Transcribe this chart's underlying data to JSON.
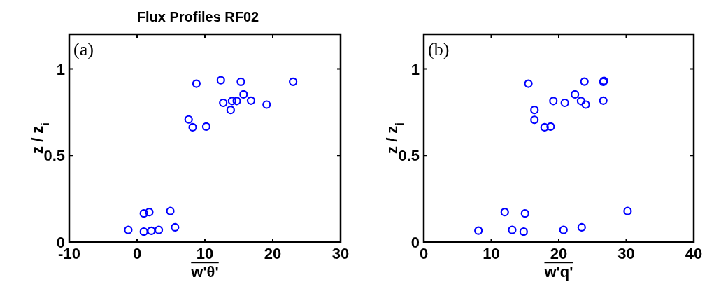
{
  "chart_data": [
    {
      "type": "scatter",
      "title": "Flux Profiles RF02",
      "xlabel": "w'θ'",
      "ylabel": "z / z$_{i}$",
      "annotations": [
        "(a)"
      ],
      "xlim": [
        -10,
        30
      ],
      "xticks": [
        -10,
        0,
        10,
        20,
        30
      ],
      "ylim": [
        0,
        1.2
      ],
      "yticks": [
        0,
        0.5,
        1
      ],
      "marker": "circle",
      "grid": false,
      "series": [
        {
          "color": "#0000ff",
          "x": [
            8.75,
            12.35,
            15.3,
            23.0,
            15.7,
            12.7,
            14.0,
            14.7,
            16.8,
            19.1,
            13.8,
            7.6,
            8.2,
            10.2,
            1.0,
            1.8,
            4.9,
            -1.3,
            1.0,
            2.1,
            3.2,
            5.6
          ],
          "values": [
            0.915,
            0.935,
            0.926,
            0.926,
            0.853,
            0.804,
            0.815,
            0.815,
            0.817,
            0.794,
            0.763,
            0.708,
            0.663,
            0.667,
            0.165,
            0.173,
            0.179,
            0.07,
            0.06,
            0.065,
            0.07,
            0.085
          ]
        }
      ]
    },
    {
      "type": "scatter",
      "xlabel": "w'q'",
      "ylabel": "z / z$_{i}$",
      "annotations": [
        "(b)"
      ],
      "xlim": [
        0,
        40
      ],
      "xticks": [
        0,
        10,
        20,
        30,
        40
      ],
      "ylim": [
        0,
        1.2
      ],
      "yticks": [
        0,
        0.5,
        1
      ],
      "marker": "circle",
      "grid": false,
      "series": [
        {
          "color": "#0000ff",
          "x": [
            15.5,
            23.8,
            26.7,
            26.6,
            22.4,
            19.2,
            20.9,
            23.3,
            24.0,
            26.6,
            16.4,
            16.4,
            17.9,
            18.8,
            12.0,
            15.0,
            30.2,
            8.1,
            13.1,
            14.8,
            20.7,
            23.4
          ],
          "values": [
            0.915,
            0.927,
            0.931,
            0.926,
            0.853,
            0.815,
            0.804,
            0.815,
            0.794,
            0.817,
            0.763,
            0.706,
            0.663,
            0.667,
            0.173,
            0.165,
            0.179,
            0.066,
            0.07,
            0.06,
            0.07,
            0.085
          ]
        }
      ]
    }
  ]
}
